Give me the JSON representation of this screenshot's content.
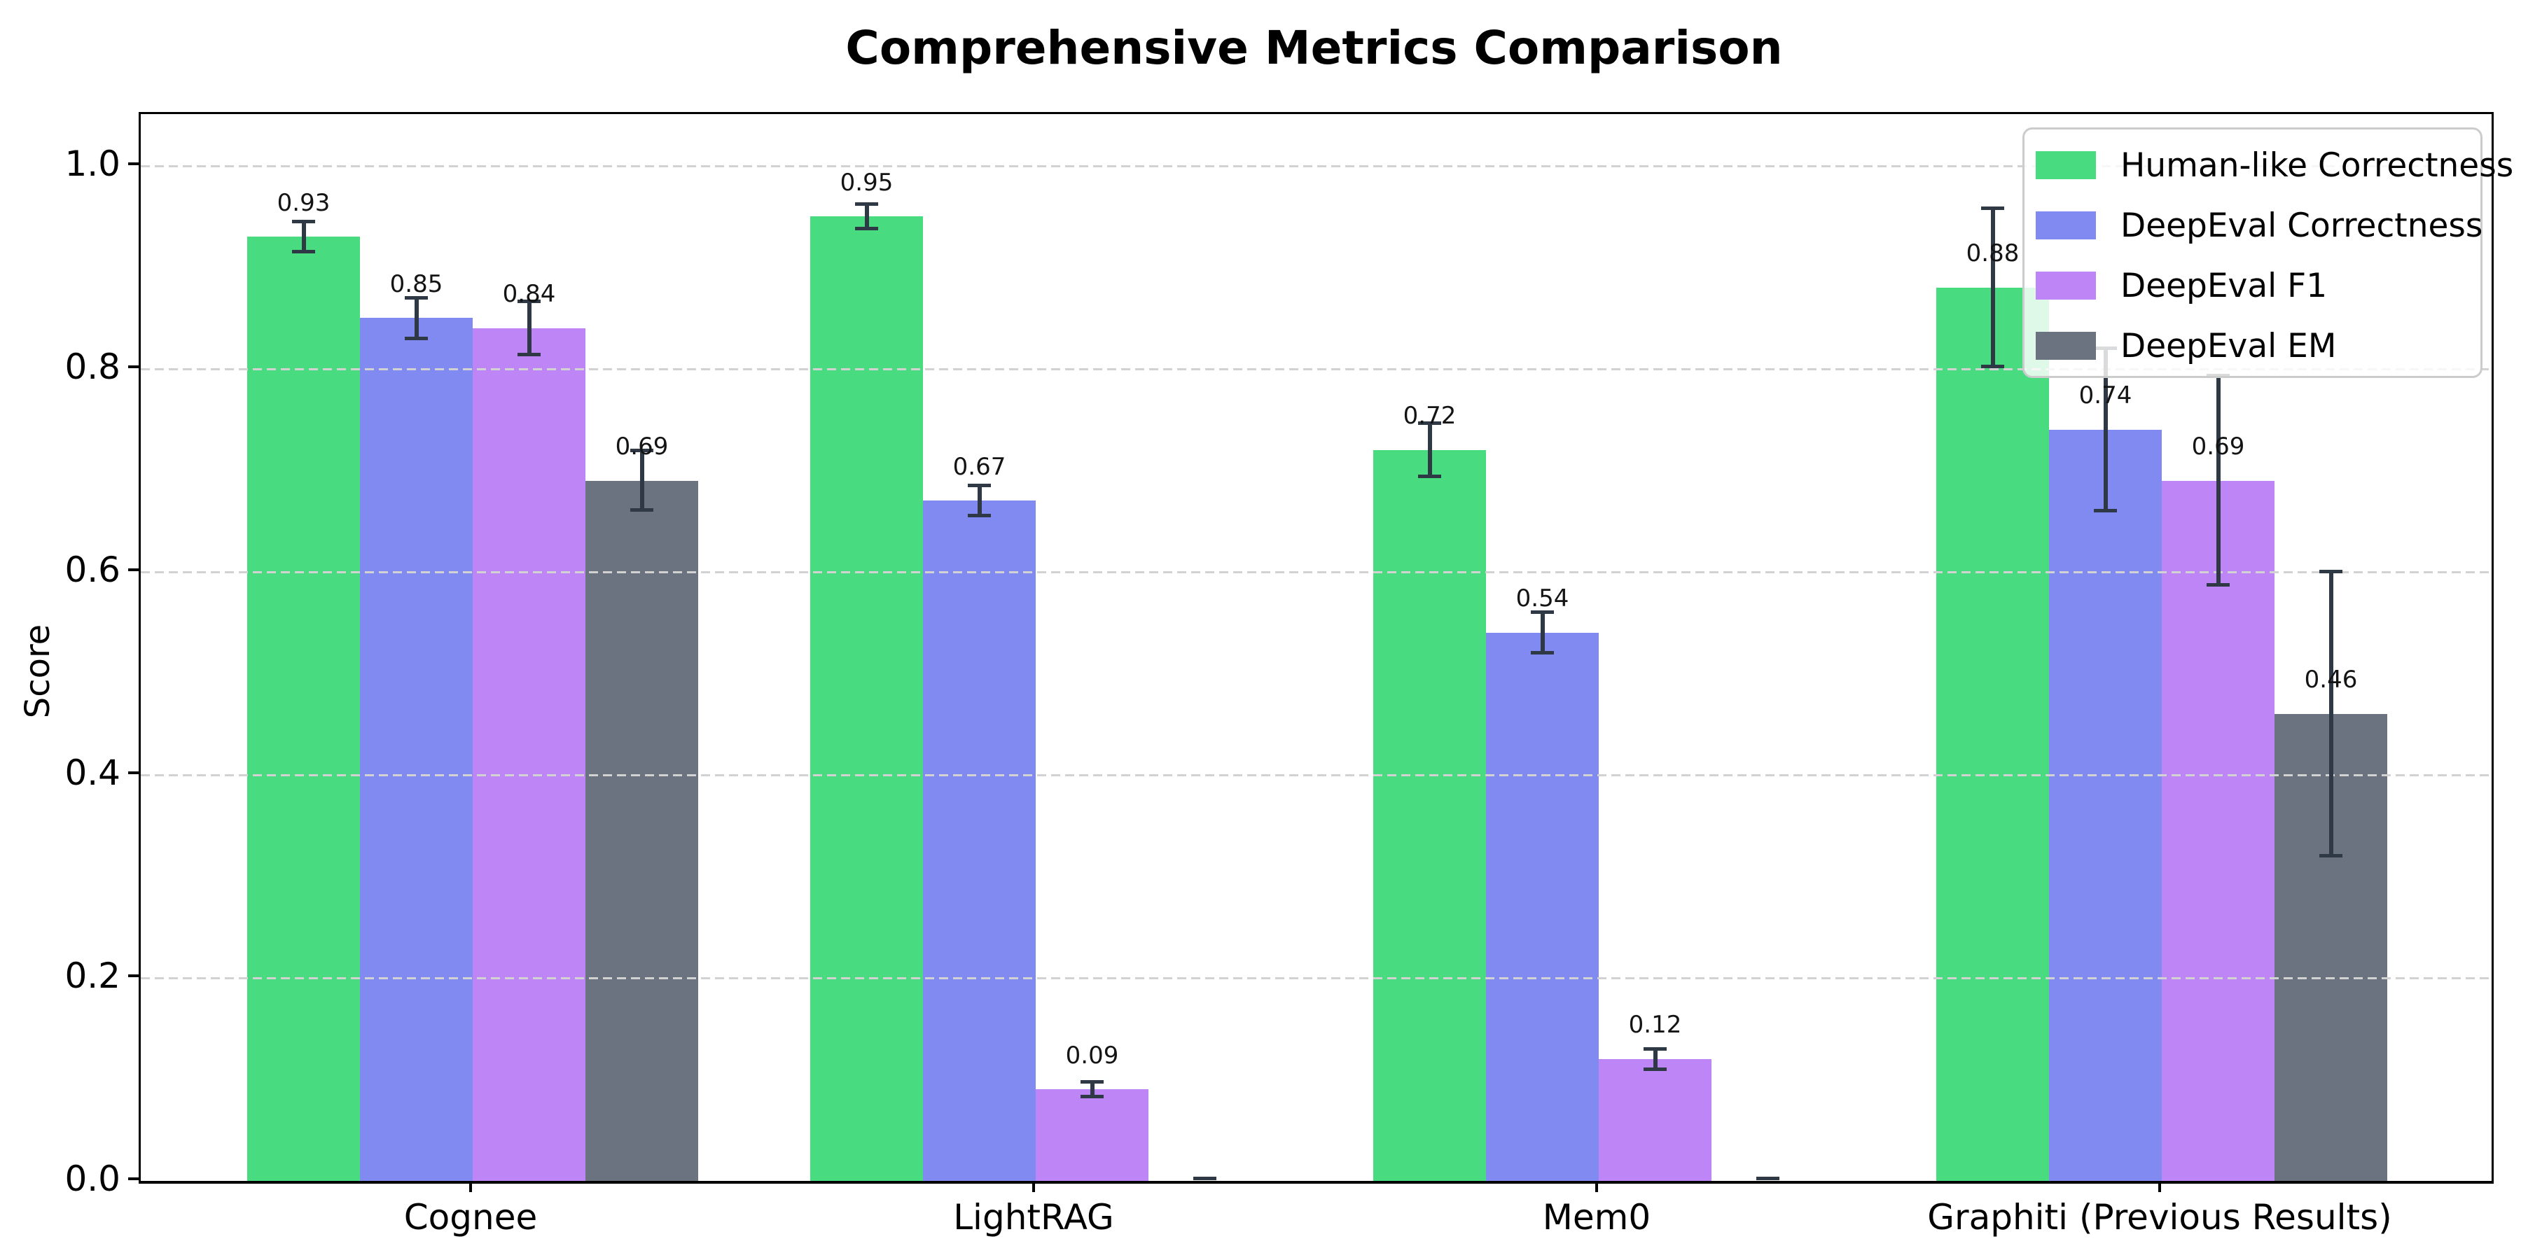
{
  "title": "Comprehensive Metrics Comparison",
  "chart_data": {
    "type": "bar",
    "title": "Comprehensive Metrics Comparison",
    "xlabel": "",
    "ylabel": "Score",
    "categories": [
      "Cognee",
      "LightRAG",
      "Mem0",
      "Graphiti (Previous Results)"
    ],
    "series": [
      {
        "name": "Human-like Correctness",
        "color": "#49db80",
        "values": [
          0.93,
          0.95,
          0.72,
          0.88
        ],
        "errors": [
          0.015,
          0.012,
          0.026,
          0.078
        ],
        "value_labels": [
          "0.93",
          "0.95",
          "0.72",
          "0.88"
        ]
      },
      {
        "name": "DeepEval Correctness",
        "color": "#818af0",
        "values": [
          0.85,
          0.67,
          0.54,
          0.74
        ],
        "errors": [
          0.02,
          0.015,
          0.02,
          0.08
        ],
        "value_labels": [
          "0.85",
          "0.67",
          "0.54",
          "0.74"
        ]
      },
      {
        "name": "DeepEval F1",
        "color": "#bd85f6",
        "values": [
          0.84,
          0.09,
          0.12,
          0.69
        ],
        "errors": [
          0.026,
          0.007,
          0.01,
          0.103
        ],
        "value_labels": [
          "0.84",
          "0.09",
          "0.12",
          "0.69"
        ]
      },
      {
        "name": "DeepEval EM",
        "color": "#6c7380",
        "values": [
          0.69,
          0.0,
          0.0,
          0.46
        ],
        "errors": [
          0.029,
          0.004,
          0.004,
          0.14
        ],
        "value_labels": [
          "0.69",
          "",
          "",
          "0.46"
        ]
      }
    ],
    "yticks": [
      "0.0",
      "0.2",
      "0.4",
      "0.6",
      "0.8",
      "1.0"
    ],
    "ylim": [
      0,
      1.05
    ],
    "grid": "horizontal-dashed",
    "legend_position": "upper-right",
    "error_bar_color": "#2f3845",
    "grid_color": "#d2d2d2"
  }
}
